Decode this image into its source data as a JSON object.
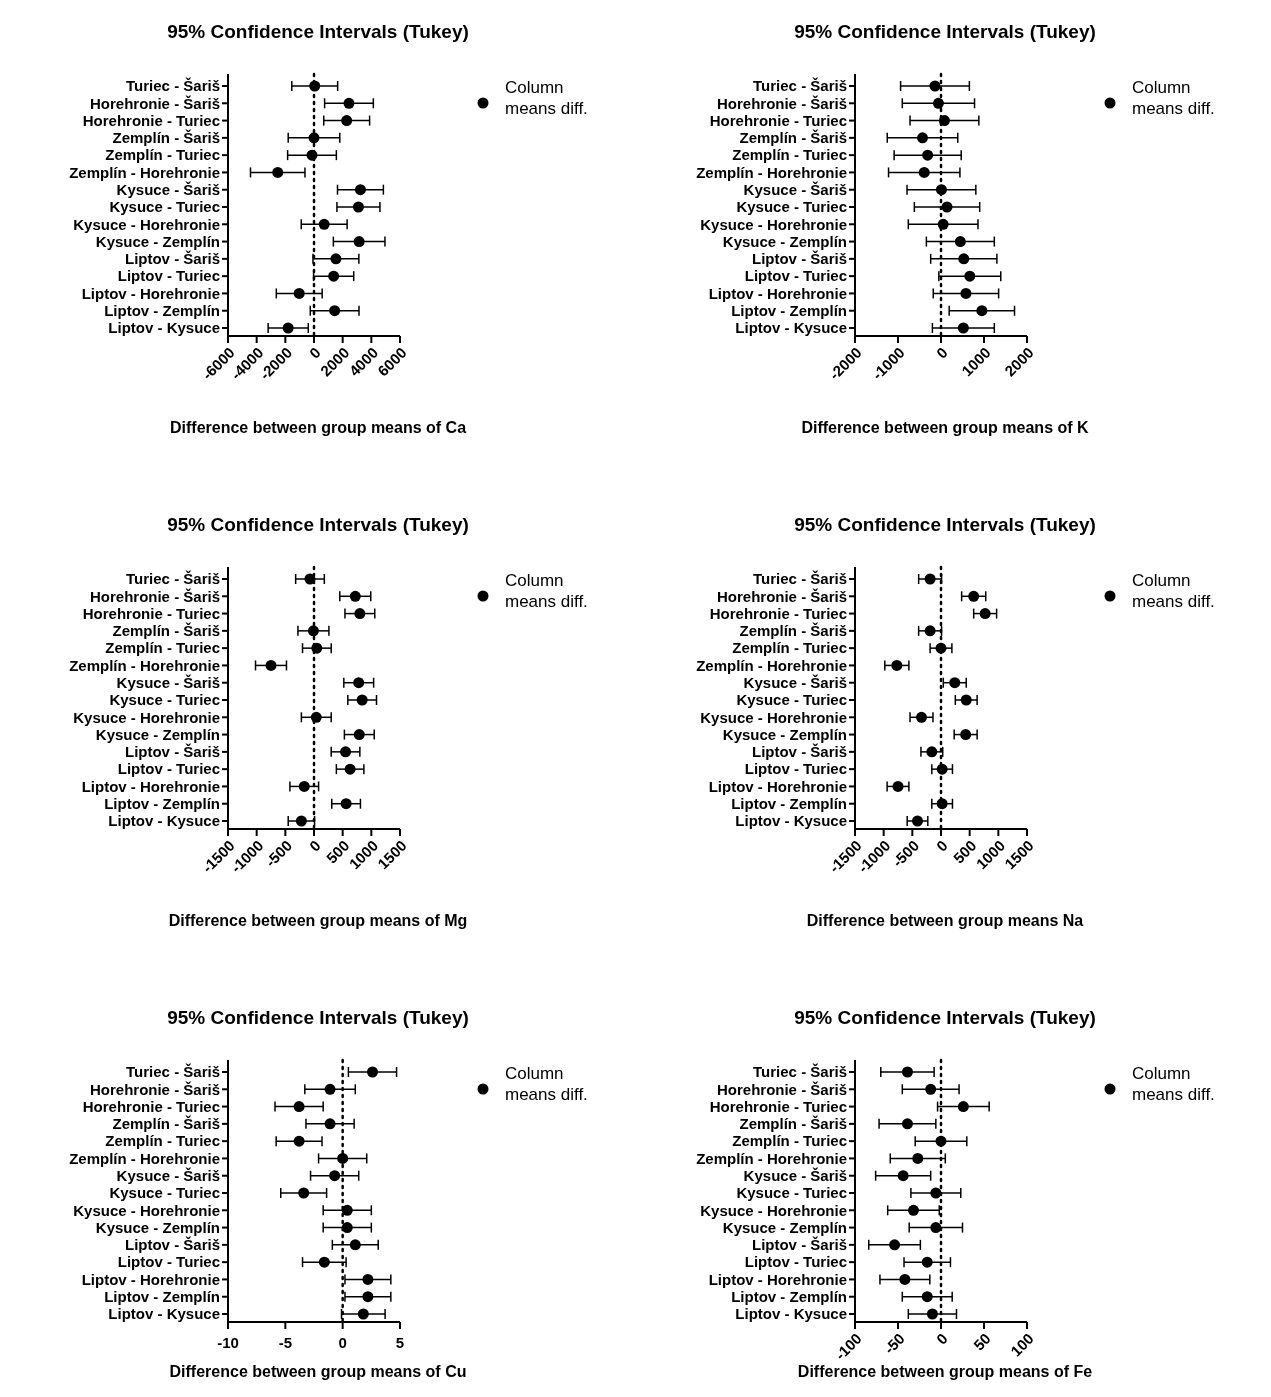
{
  "chart_data": [
    {
      "type": "scatter",
      "orientation": "horizontal",
      "title": "95% Confidence Intervals (Tukey)",
      "xlabel": "Difference between group means of Ca",
      "categories": [
        "Turiec - Šariš",
        "Horehronie - Šariš",
        "Horehronie - Turiec",
        "Zemplín - Šariš",
        "Zemplín - Turiec",
        "Zemplín - Horehronie",
        "Kysuce - Šariš",
        "Kysuce - Turiec",
        "Kysuce - Horehronie",
        "Kysuce - Zemplín",
        "Liptov - Šariš",
        "Liptov - Turiec",
        "Liptov - Horehronie",
        "Liptov - Zemplín",
        "Liptov - Kysuce"
      ],
      "series": [
        {
          "name": "Column means diff.",
          "color": "#000000",
          "values": [
            50,
            2440,
            2280,
            0,
            -140,
            -2530,
            3240,
            3100,
            710,
            3150,
            1530,
            1370,
            -1030,
            1440,
            -1800
          ],
          "errors": [
            1600,
            1700,
            1600,
            1800,
            1700,
            1900,
            1600,
            1500,
            1600,
            1800,
            1600,
            1400,
            1600,
            1700,
            1400
          ]
        }
      ],
      "xlim": [
        -6000,
        6000
      ],
      "xticks": [
        -6000,
        -4000,
        -2000,
        0,
        2000,
        4000,
        6000
      ],
      "marker": "circle",
      "legend": "top right",
      "grid": false,
      "ref_lines": [
        {
          "axis": "x",
          "value": 0,
          "color": "#000000",
          "line_style": "dotted"
        }
      ]
    },
    {
      "type": "scatter",
      "orientation": "horizontal",
      "title": "95% Confidence Intervals (Tukey)",
      "xlabel": "Difference between group means of K",
      "categories": [
        "Turiec - Šariš",
        "Horehronie - Šariš",
        "Horehronie - Turiec",
        "Zemplín - Šariš",
        "Zemplín - Turiec",
        "Zemplín - Horehronie",
        "Kysuce - Šariš",
        "Kysuce - Turiec",
        "Kysuce - Horehronie",
        "Kysuce - Zemplín",
        "Liptov - Šariš",
        "Liptov - Turiec",
        "Liptov - Horehronie",
        "Liptov - Zemplín",
        "Liptov - Kysuce"
      ],
      "series": [
        {
          "name": "Column means diff.",
          "color": "#000000",
          "values": [
            -140,
            -60,
            80,
            -430,
            -310,
            -390,
            10,
            140,
            50,
            450,
            530,
            670,
            580,
            950,
            520
          ],
          "errors": [
            800,
            840,
            800,
            820,
            780,
            830,
            800,
            760,
            810,
            790,
            770,
            720,
            760,
            760,
            720
          ]
        }
      ],
      "xlim": [
        -2000,
        2000
      ],
      "xticks": [
        -2000,
        -1000,
        0,
        1000,
        2000
      ],
      "marker": "circle",
      "legend": "top right",
      "grid": false,
      "ref_lines": [
        {
          "axis": "x",
          "value": 0,
          "color": "#000000",
          "line_style": "dotted"
        }
      ]
    },
    {
      "type": "scatter",
      "orientation": "horizontal",
      "title": "95% Confidence Intervals (Tukey)",
      "xlabel": "Difference between group means of Mg",
      "categories": [
        "Turiec - Šariš",
        "Horehronie - Šariš",
        "Horehronie - Turiec",
        "Zemplín - Šariš",
        "Zemplín - Turiec",
        "Zemplín - Horehronie",
        "Kysuce - Šariš",
        "Kysuce - Turiec",
        "Kysuce - Horehronie",
        "Kysuce - Zemplín",
        "Liptov - Šariš",
        "Liptov - Turiec",
        "Liptov - Horehronie",
        "Liptov - Zemplín",
        "Liptov - Kysuce"
      ],
      "series": [
        {
          "name": "Column means diff.",
          "color": "#000000",
          "values": [
            -70,
            720,
            800,
            -10,
            50,
            -750,
            780,
            840,
            40,
            790,
            550,
            630,
            -170,
            560,
            -220
          ],
          "errors": [
            250,
            270,
            260,
            270,
            250,
            270,
            260,
            250,
            260,
            260,
            250,
            240,
            250,
            250,
            230
          ]
        }
      ],
      "xlim": [
        -1500,
        1500
      ],
      "xticks": [
        -1500,
        -1000,
        -500,
        0,
        500,
        1000,
        1500
      ],
      "marker": "circle",
      "legend": "top right",
      "grid": false,
      "ref_lines": [
        {
          "axis": "x",
          "value": 0,
          "color": "#000000",
          "line_style": "dotted"
        }
      ]
    },
    {
      "type": "scatter",
      "orientation": "horizontal",
      "title": "95% Confidence Intervals (Tukey)",
      "xlabel": "Difference between group means Na",
      "categories": [
        "Turiec - Šariš",
        "Horehronie - Šariš",
        "Horehronie - Turiec",
        "Zemplín - Šariš",
        "Zemplín - Turiec",
        "Zemplín - Horehronie",
        "Kysuce - Šariš",
        "Kysuce - Turiec",
        "Kysuce - Horehronie",
        "Kysuce - Zemplín",
        "Liptov - Šariš",
        "Liptov - Turiec",
        "Liptov - Horehronie",
        "Liptov - Zemplín",
        "Liptov - Kysuce"
      ],
      "series": [
        {
          "name": "Column means diff.",
          "color": "#000000",
          "values": [
            -190,
            570,
            770,
            -190,
            0,
            -770,
            240,
            440,
            -340,
            430,
            -160,
            20,
            -750,
            20,
            -410
          ],
          "errors": [
            200,
            210,
            200,
            200,
            190,
            210,
            200,
            190,
            200,
            200,
            190,
            180,
            190,
            180,
            180
          ]
        }
      ],
      "xlim": [
        -1500,
        1500
      ],
      "xticks": [
        -1500,
        -1000,
        -500,
        0,
        500,
        1000,
        1500
      ],
      "marker": "circle",
      "legend": "top right",
      "grid": false,
      "ref_lines": [
        {
          "axis": "x",
          "value": 0,
          "color": "#000000",
          "line_style": "dotted"
        }
      ]
    },
    {
      "type": "scatter",
      "orientation": "horizontal",
      "title": "95% Confidence Intervals (Tukey)",
      "xlabel": "Difference between group means of Cu",
      "categories": [
        "Turiec - Šariš",
        "Horehronie - Šariš",
        "Horehronie - Turiec",
        "Zemplín - Šariš",
        "Zemplín - Turiec",
        "Zemplín - Horehronie",
        "Kysuce - Šariš",
        "Kysuce - Turiec",
        "Kysuce - Horehronie",
        "Kysuce - Zemplín",
        "Liptov - Šariš",
        "Liptov - Turiec",
        "Liptov - Horehronie",
        "Liptov - Zemplín",
        "Liptov - Kysuce"
      ],
      "series": [
        {
          "name": "Column means diff.",
          "color": "#000000",
          "values": [
            2.6,
            -1.1,
            -3.8,
            -1.1,
            -3.8,
            0,
            -0.7,
            -3.4,
            0.4,
            0.4,
            1.1,
            -1.6,
            2.2,
            2.2,
            1.8
          ],
          "errors": [
            2.1,
            2.2,
            2.1,
            2.1,
            2.0,
            2.1,
            2.1,
            2.0,
            2.1,
            2.1,
            2.0,
            1.9,
            2.0,
            2.0,
            1.9
          ]
        }
      ],
      "xlim": [
        -10,
        5
      ],
      "xticks": [
        -10,
        -5,
        0,
        5
      ],
      "marker": "circle",
      "legend": "top right",
      "grid": false,
      "ref_lines": [
        {
          "axis": "x",
          "value": 0,
          "color": "#000000",
          "line_style": "dotted"
        }
      ]
    },
    {
      "type": "scatter",
      "orientation": "horizontal",
      "title": "95% Confidence Intervals (Tukey)",
      "xlabel": "Difference between group means of Fe",
      "categories": [
        "Turiec - Šariš",
        "Horehronie - Šariš",
        "Horehronie - Turiec",
        "Zemplín - Šariš",
        "Zemplín - Turiec",
        "Zemplín - Horehronie",
        "Kysuce - Šariš",
        "Kysuce - Turiec",
        "Kysuce - Horehronie",
        "Kysuce - Zemplín",
        "Liptov - Šariš",
        "Liptov - Turiec",
        "Liptov - Horehronie",
        "Liptov - Zemplín",
        "Liptov - Kysuce"
      ],
      "series": [
        {
          "name": "Column means diff.",
          "color": "#000000",
          "values": [
            -39,
            -12,
            26,
            -39,
            0,
            -27,
            -44,
            -6,
            -32,
            -6,
            -54,
            -16,
            -42,
            -16,
            -10
          ],
          "errors": [
            31,
            33,
            30,
            33,
            30,
            32,
            32,
            29,
            30,
            31,
            30,
            27,
            29,
            29,
            28
          ]
        }
      ],
      "xlim": [
        -100,
        100
      ],
      "xticks": [
        -100,
        -50,
        0,
        50,
        100
      ],
      "marker": "circle",
      "legend": "top right",
      "grid": false,
      "ref_lines": [
        {
          "axis": "x",
          "value": 0,
          "color": "#000000",
          "line_style": "dotted"
        }
      ]
    }
  ]
}
